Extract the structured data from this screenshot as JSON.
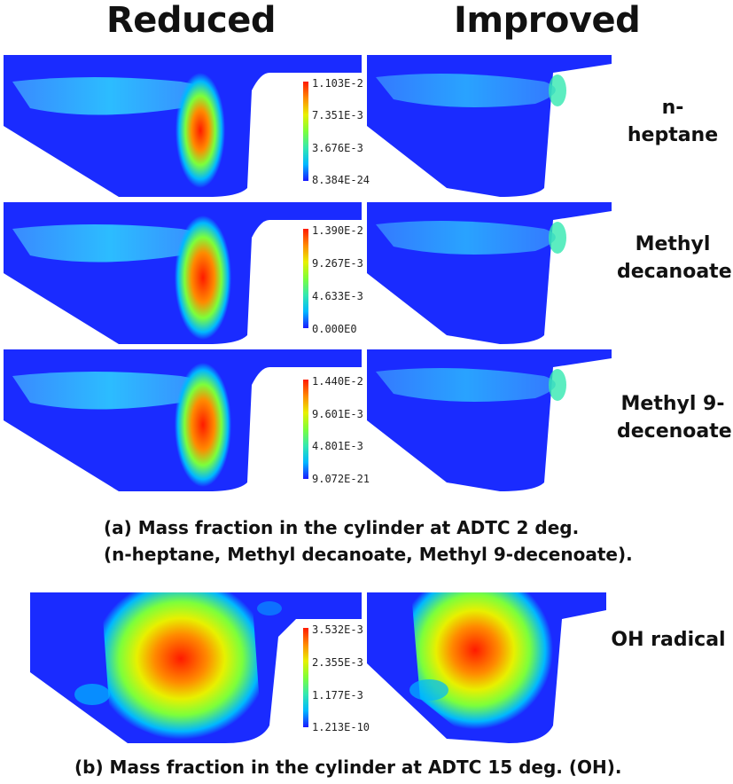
{
  "headers": {
    "left": "Reduced",
    "right": "Improved"
  },
  "rows": [
    {
      "species": "n-heptane",
      "colorbar": [
        "1.103E-2",
        "7.351E-3",
        "3.676E-3",
        "8.384E-24"
      ]
    },
    {
      "species": "Methyl decanoate",
      "colorbar": [
        "1.390E-2",
        "9.267E-3",
        "4.633E-3",
        "0.000E0"
      ]
    },
    {
      "species": "Methyl 9-decenoate",
      "colorbar": [
        "1.440E-2",
        "9.601E-3",
        "4.801E-3",
        "9.072E-21"
      ]
    }
  ],
  "oh": {
    "species": "OH radical",
    "colorbar": [
      "3.532E-3",
      "2.355E-3",
      "1.177E-3",
      "1.213E-10"
    ]
  },
  "captions": {
    "a_line1": "(a) Mass fraction in the cylinder at ADTC 2 deg.",
    "a_line2": "(n-heptane, Methyl decanoate, Methyl 9-decenoate).",
    "b": "(b) Mass fraction in the cylinder at ADTC 15 deg. (OH)."
  },
  "colormap": [
    "#1a1aff",
    "#00b8ff",
    "#33e8b0",
    "#7dff3a",
    "#e8f000",
    "#ff8a00",
    "#ff1a00"
  ]
}
